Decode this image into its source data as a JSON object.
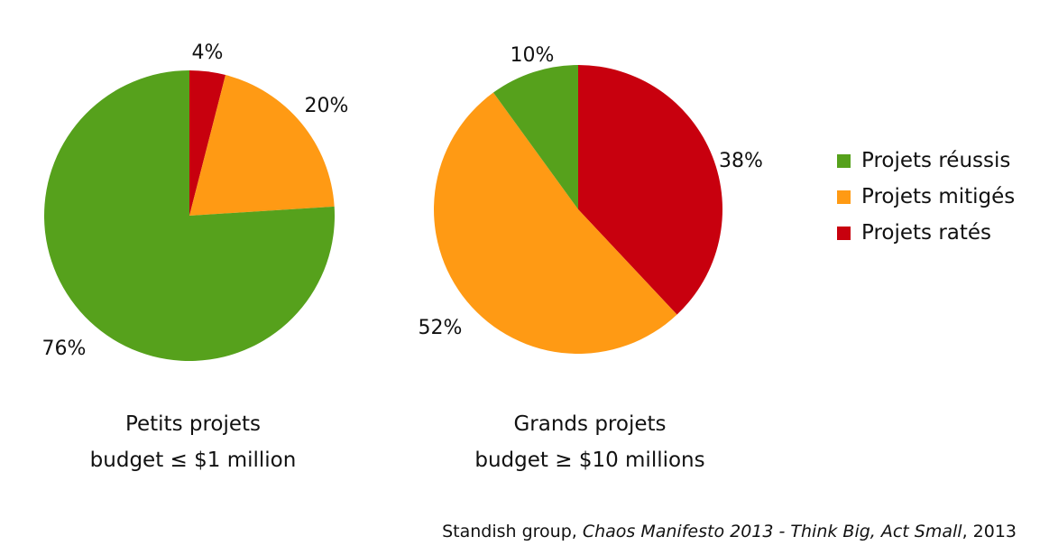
{
  "colors": {
    "success": "#56a11c",
    "mixed": "#ff9a14",
    "failed": "#c8000e"
  },
  "legend": {
    "items": [
      {
        "label": "Projets réussis",
        "color_key": "success"
      },
      {
        "label": "Projets mitigés",
        "color_key": "mixed"
      },
      {
        "label": "Projets ratés",
        "color_key": "failed"
      }
    ]
  },
  "source": {
    "prefix": "Standish group, ",
    "title": "Chaos Manifesto 2013 - Think Big, Act Small",
    "suffix": ", 2013"
  },
  "chart_data": [
    {
      "type": "pie",
      "caption_line1": "Petits projets",
      "caption_line2": "budget ≤ $1 million",
      "slices": [
        {
          "label": "Projets ratés",
          "value": 4,
          "value_label": "4%",
          "color_key": "failed"
        },
        {
          "label": "Projets mitigés",
          "value": 20,
          "value_label": "20%",
          "color_key": "mixed"
        },
        {
          "label": "Projets réussis",
          "value": 76,
          "value_label": "76%",
          "color_key": "success"
        }
      ]
    },
    {
      "type": "pie",
      "caption_line1": "Grands projets",
      "caption_line2": "budget ≥ $10 millions",
      "slices": [
        {
          "label": "Projets ratés",
          "value": 38,
          "value_label": "38%",
          "color_key": "failed"
        },
        {
          "label": "Projets mitigés",
          "value": 52,
          "value_label": "52%",
          "color_key": "mixed"
        },
        {
          "label": "Projets réussis",
          "value": 10,
          "value_label": "10%",
          "color_key": "success"
        }
      ]
    }
  ]
}
